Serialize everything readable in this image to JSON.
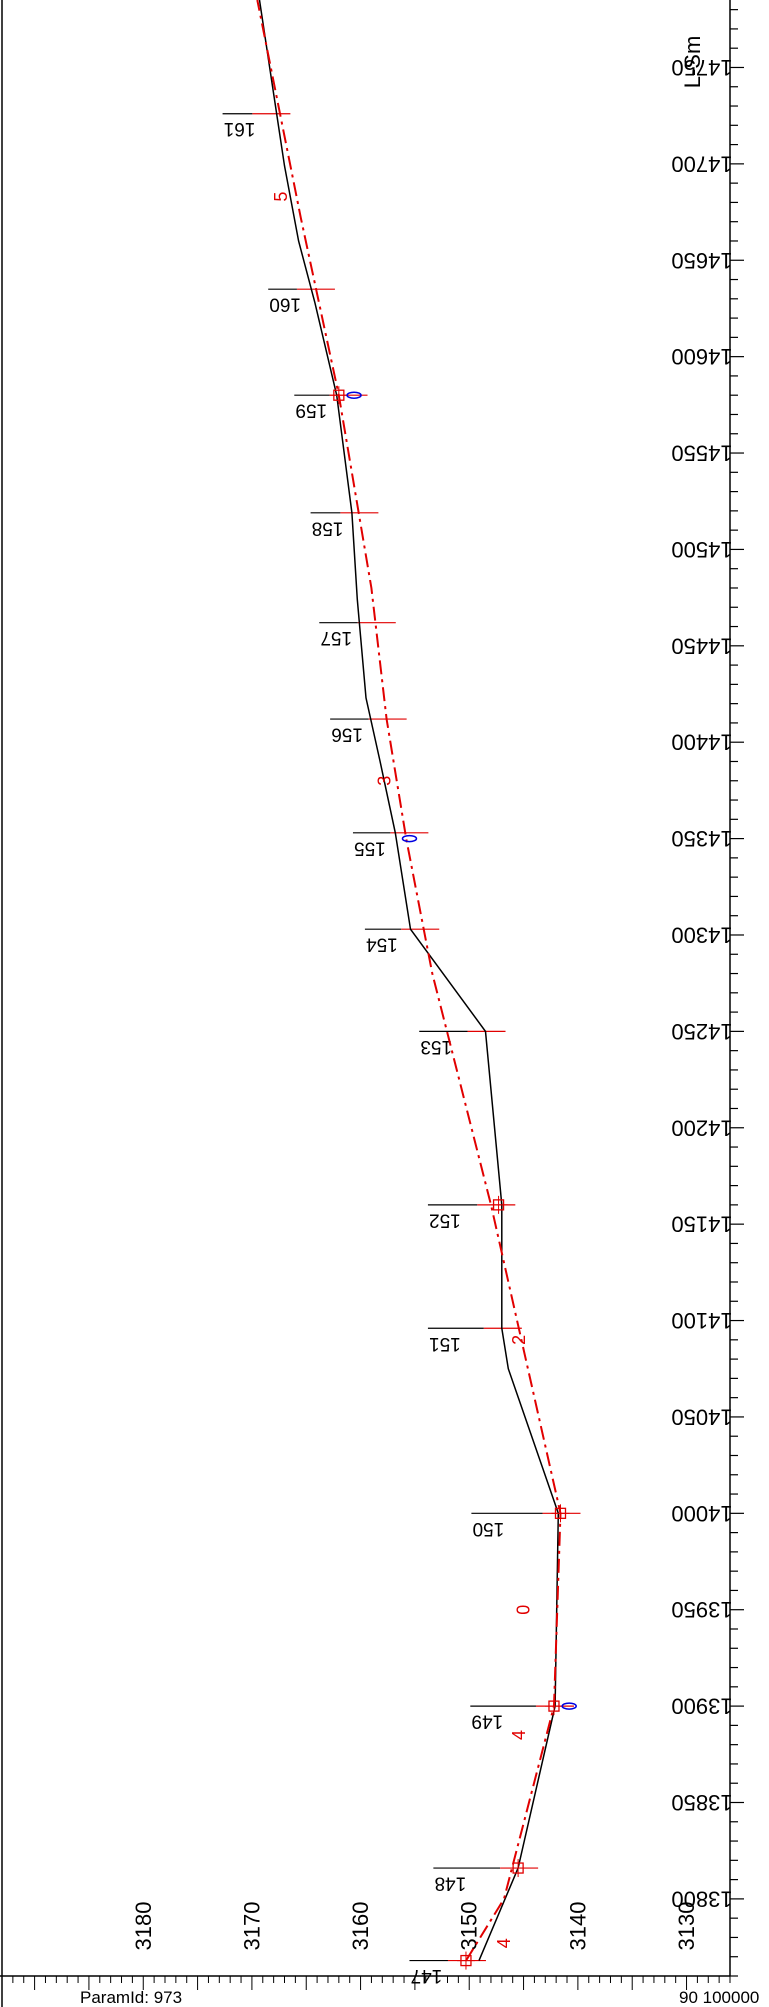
{
  "chart_data": {
    "type": "line",
    "title": "",
    "xlabel": "",
    "ylabel": "",
    "axis_unit": "L-Sm",
    "footer_left": "ParamId: 973",
    "footer_right": "90 100000",
    "xlim": [
      13760,
      14785
    ],
    "ylim": [
      3126,
      3193
    ],
    "x_ticks": [
      13800,
      13850,
      13900,
      13950,
      14000,
      14050,
      14100,
      14150,
      14200,
      14250,
      14300,
      14350,
      14400,
      14450,
      14500,
      14550,
      14600,
      14650,
      14700,
      14750
    ],
    "y_ticks": [
      3130,
      3140,
      3150,
      3160,
      3170,
      3180
    ],
    "grid": false,
    "colors": {
      "terrain": "#000000",
      "design": "#e10000",
      "marker": "#0000e0"
    },
    "series": [
      {
        "key": "terrain",
        "style": "solid",
        "x": [
          13768,
          13816,
          13900,
          14000,
          14075,
          14096,
          14160,
          14250,
          14303,
          14353,
          14390,
          14423,
          14474,
          14519,
          14580,
          14628,
          14660,
          14699,
          14785
        ],
        "y": [
          3149.1,
          3145.5,
          3142.1,
          3141.8,
          3146.4,
          3147.0,
          3147.0,
          3148.5,
          3155.4,
          3156.8,
          3158.2,
          3159.5,
          3160.3,
          3160.8,
          3162.2,
          3164.2,
          3165.7,
          3167.0,
          3169.3
        ]
      },
      {
        "key": "design",
        "style": "dash-dot",
        "x": [
          13768,
          13800,
          13900,
          14000,
          14160,
          14280,
          14350,
          14412,
          14480,
          14580,
          14672,
          14785
        ],
        "y": [
          3150.3,
          3146.8,
          3142.2,
          3141.6,
          3148.0,
          3153.4,
          3155.8,
          3157.6,
          3159.0,
          3162.0,
          3165.5,
          3169.5
        ]
      }
    ],
    "points": [
      {
        "x": 13768,
        "y": 3150.3
      },
      {
        "x": 13816,
        "y": 3145.5
      },
      {
        "x": 13900,
        "y": 3142.2
      },
      {
        "x": 14000,
        "y": 3141.6
      },
      {
        "x": 14160,
        "y": 3147.3
      },
      {
        "x": 14580,
        "y": 3162.0
      }
    ],
    "markers": [
      {
        "x": 13900,
        "y": 3140.8
      },
      {
        "x": 14350,
        "y": 3155.5
      },
      {
        "x": 14580,
        "y": 3160.6
      }
    ],
    "cross_sections": [
      {
        "label": "147",
        "x": 13768,
        "y": 3150.3,
        "y_top": 3155.5
      },
      {
        "label": "148",
        "x": 13816,
        "y": 3145.5,
        "y_top": 3153.3
      },
      {
        "label": "149",
        "x": 13900,
        "y": 3142.2,
        "y_top": 3149.9
      },
      {
        "label": "150",
        "x": 14000,
        "y": 3141.6,
        "y_top": 3149.8
      },
      {
        "label": "151",
        "x": 14096,
        "y": 3147.0,
        "y_top": 3153.8
      },
      {
        "label": "152",
        "x": 14160,
        "y": 3147.6,
        "y_top": 3153.8
      },
      {
        "label": "153",
        "x": 14250,
        "y": 3148.5,
        "y_top": 3154.6
      },
      {
        "label": "154",
        "x": 14303,
        "y": 3154.6,
        "y_top": 3159.6
      },
      {
        "label": "155",
        "x": 14353,
        "y": 3155.6,
        "y_top": 3160.7
      },
      {
        "label": "156",
        "x": 14412,
        "y": 3157.6,
        "y_top": 3162.8
      },
      {
        "label": "157",
        "x": 14462,
        "y": 3158.6,
        "y_top": 3163.8
      },
      {
        "label": "158",
        "x": 14519,
        "y": 3160.2,
        "y_top": 3164.6
      },
      {
        "label": "159",
        "x": 14580,
        "y": 3161.2,
        "y_top": 3166.1
      },
      {
        "label": "160",
        "x": 14635,
        "y": 3164.2,
        "y_top": 3168.5
      },
      {
        "label": "161",
        "x": 14726,
        "y": 3168.3,
        "y_top": 3172.7
      }
    ],
    "segment_labels": [
      {
        "text": "4",
        "x": 13777,
        "y": 3146.8
      },
      {
        "text": "4",
        "x": 13885,
        "y": 3145.4
      },
      {
        "text": "0",
        "x": 13950,
        "y": 3145.0
      },
      {
        "text": "2",
        "x": 14090,
        "y": 3145.4
      },
      {
        "text": "3",
        "x": 14380,
        "y": 3157.8
      },
      {
        "text": "5",
        "x": 14683,
        "y": 3167.3
      }
    ]
  }
}
